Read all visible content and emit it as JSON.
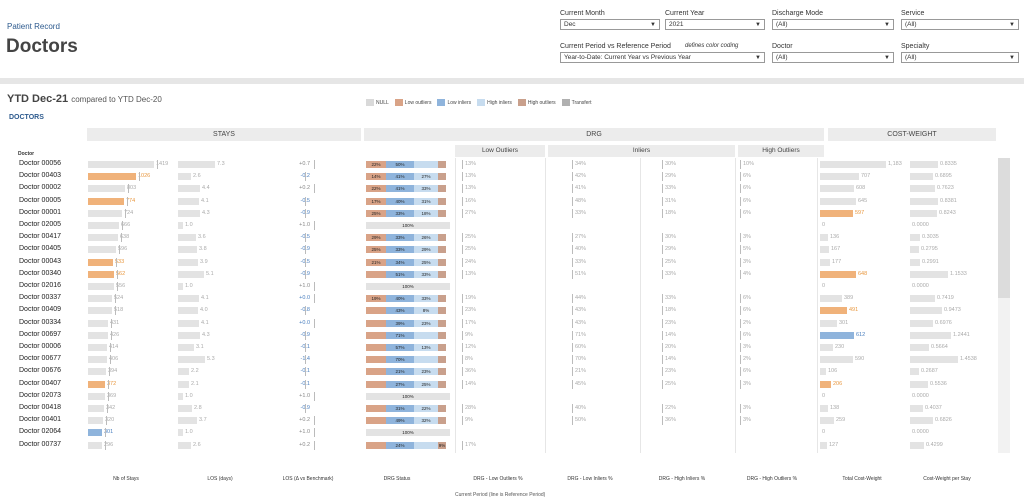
{
  "header": {
    "crumb": "Patient Record",
    "title": "Doctors"
  },
  "filters": [
    {
      "label": "Current Month",
      "value": "Dec"
    },
    {
      "label": "Current Year",
      "value": "2021"
    },
    {
      "label": "Discharge Mode",
      "value": "(All)"
    },
    {
      "label": "Service",
      "value": "(All)"
    },
    {
      "label": "Current Period vs Reference Period",
      "value": "Year-to-Date: Current Year vs Previous Year"
    },
    {
      "label": "Doctor",
      "value": "(All)"
    },
    {
      "label": "Specialty",
      "value": "(All)"
    }
  ],
  "note": "defines color coding",
  "ytd": {
    "main": "YTD Dec-21",
    "sub": "compared to YTD Dec-20"
  },
  "legend": [
    {
      "label": "NULL",
      "color": "#d9d9d9"
    },
    {
      "label": "Low outliers",
      "color": "#d9a387"
    },
    {
      "label": "Low inliers",
      "color": "#8fb4dc"
    },
    {
      "label": "High inliers",
      "color": "#c7dcef"
    },
    {
      "label": "High outliers",
      "color": "#c9a08c"
    },
    {
      "label": "Transfert",
      "color": "#b0b0b0"
    }
  ],
  "section_label": "DOCTORS",
  "groups": {
    "stays": "STAYS",
    "drg": "DRG",
    "cw": "COST-WEIGHT"
  },
  "subgroups": {
    "low": "Low Outliers",
    "inl": "Inliers",
    "high": "High Outliers"
  },
  "doctor_col": "Doctor",
  "rows": [
    {
      "name": "Doctor 00056",
      "stays": 1419,
      "sh": "g",
      "los": "7.3",
      "d": "+0.7",
      "db": "",
      "drg": [
        "22%",
        "50%",
        ""
      ],
      "dl": "13%",
      "di": "34%",
      "dh": "30%",
      "do": "10%",
      "cw": "1,183",
      "ch": "g",
      "cps": "0.8335"
    },
    {
      "name": "Doctor 00403",
      "stays": 1026,
      "sh": "o",
      "los": "2.6",
      "d": "-0.2",
      "db": "b",
      "drg": [
        "14%",
        "41%",
        "27%"
      ],
      "dl": "13%",
      "di": "42%",
      "dh": "29%",
      "do": "6%",
      "cw": "707",
      "ch": "g",
      "cps": "0.6895"
    },
    {
      "name": "Doctor 00002",
      "stays": 803,
      "sh": "g",
      "los": "4.4",
      "d": "+0.2",
      "db": "",
      "drg": [
        "22%",
        "41%",
        "33%"
      ],
      "dl": "13%",
      "di": "41%",
      "dh": "33%",
      "do": "6%",
      "cw": "608",
      "ch": "g",
      "cps": "0.7623"
    },
    {
      "name": "Doctor 00005",
      "stays": 774,
      "sh": "o",
      "los": "4.1",
      "d": "-0.5",
      "db": "b",
      "drg": [
        "17%",
        "40%",
        "31%"
      ],
      "dl": "16%",
      "di": "48%",
      "dh": "31%",
      "do": "6%",
      "cw": "645",
      "ch": "g",
      "cps": "0.8381"
    },
    {
      "name": "Doctor 00001",
      "stays": 724,
      "sh": "g",
      "los": "4.3",
      "d": "-0.9",
      "db": "b",
      "drg": [
        "25%",
        "33%",
        "18%"
      ],
      "dl": "27%",
      "di": "33%",
      "dh": "18%",
      "do": "6%",
      "cw": "597",
      "ch": "o",
      "cps": "0.8243"
    },
    {
      "name": "Doctor 02005",
      "stays": 666,
      "sh": "g",
      "los": "1.0",
      "d": "+1.0",
      "db": "",
      "drg": [
        "100%",
        "",
        ""
      ],
      "dl": "",
      "di": "",
      "dh": "",
      "do": "",
      "cw": "0",
      "ch": "g",
      "cps": "0.0000"
    },
    {
      "name": "Doctor 00417",
      "stays": 638,
      "sh": "g",
      "los": "3.6",
      "d": "-0.5",
      "db": "b",
      "drg": [
        "29%",
        "33%",
        "26%"
      ],
      "dl": "25%",
      "di": "27%",
      "dh": "30%",
      "do": "3%",
      "cw": "136",
      "ch": "g",
      "cps": "0.3035"
    },
    {
      "name": "Doctor 00405",
      "stays": 596,
      "sh": "g",
      "los": "3.8",
      "d": "-0.9",
      "db": "b",
      "drg": [
        "25%",
        "33%",
        "29%"
      ],
      "dl": "25%",
      "di": "40%",
      "dh": "29%",
      "do": "5%",
      "cw": "167",
      "ch": "g",
      "cps": "0.2795"
    },
    {
      "name": "Doctor 00043",
      "stays": 533,
      "sh": "o",
      "los": "3.9",
      "d": "-0.5",
      "db": "b",
      "drg": [
        "21%",
        "34%",
        "25%"
      ],
      "dl": "24%",
      "di": "33%",
      "dh": "25%",
      "do": "3%",
      "cw": "177",
      "ch": "g",
      "cps": "0.2991"
    },
    {
      "name": "Doctor 00340",
      "stays": 562,
      "sh": "o",
      "los": "5.1",
      "d": "-0.9",
      "db": "b",
      "drg": [
        "",
        "51%",
        "33%"
      ],
      "dl": "13%",
      "di": "51%",
      "dh": "33%",
      "do": "4%",
      "cw": "648",
      "ch": "o",
      "cps": "1.1533"
    },
    {
      "name": "Doctor 02016",
      "stays": 556,
      "sh": "g",
      "los": "1.0",
      "d": "+1.0",
      "db": "",
      "drg": [
        "100%",
        "",
        ""
      ],
      "dl": "",
      "di": "",
      "dh": "",
      "do": "",
      "cw": "0",
      "ch": "g",
      "cps": "0.0000"
    },
    {
      "name": "Doctor 00337",
      "stays": 524,
      "sh": "g",
      "los": "4.1",
      "d": "+0.0",
      "db": "b",
      "drg": [
        "19%",
        "40%",
        "33%"
      ],
      "dl": "19%",
      "di": "44%",
      "dh": "33%",
      "do": "6%",
      "cw": "389",
      "ch": "g",
      "cps": "0.7419"
    },
    {
      "name": "Doctor 00409",
      "stays": 518,
      "sh": "g",
      "los": "4.0",
      "d": "-0.8",
      "db": "b",
      "drg": [
        "",
        "43%",
        "8%"
      ],
      "dl": "23%",
      "di": "43%",
      "dh": "18%",
      "do": "6%",
      "cw": "491",
      "ch": "o",
      "cps": "0.9473"
    },
    {
      "name": "Doctor 00334",
      "stays": 431,
      "sh": "g",
      "los": "4.1",
      "d": "+0.0",
      "db": "b",
      "drg": [
        "",
        "39%",
        "23%"
      ],
      "dl": "17%",
      "di": "43%",
      "dh": "23%",
      "do": "2%",
      "cw": "301",
      "ch": "g",
      "cps": "0.6976"
    },
    {
      "name": "Doctor 00697",
      "stays": 426,
      "sh": "g",
      "los": "4.3",
      "d": "-0.9",
      "db": "b",
      "drg": [
        "",
        "71%",
        ""
      ],
      "dl": "9%",
      "di": "71%",
      "dh": "14%",
      "do": "6%",
      "cw": "612",
      "ch": "b",
      "cps": "1.2441"
    },
    {
      "name": "Doctor 00006",
      "stays": 414,
      "sh": "g",
      "los": "3.1",
      "d": "-0.1",
      "db": "b",
      "drg": [
        "",
        "57%",
        "13%"
      ],
      "dl": "12%",
      "di": "60%",
      "dh": "20%",
      "do": "3%",
      "cw": "230",
      "ch": "g",
      "cps": "0.5664"
    },
    {
      "name": "Doctor 00677",
      "stays": 406,
      "sh": "g",
      "los": "5.3",
      "d": "-1.4",
      "db": "b",
      "drg": [
        "",
        "70%",
        ""
      ],
      "dl": "8%",
      "di": "70%",
      "dh": "14%",
      "do": "2%",
      "cw": "590",
      "ch": "g",
      "cps": "1.4538"
    },
    {
      "name": "Doctor 00676",
      "stays": 394,
      "sh": "g",
      "los": "2.2",
      "d": "-0.1",
      "db": "b",
      "drg": [
        "",
        "21%",
        "23%"
      ],
      "dl": "36%",
      "di": "21%",
      "dh": "23%",
      "do": "6%",
      "cw": "106",
      "ch": "g",
      "cps": "0.2687"
    },
    {
      "name": "Doctor 00407",
      "stays": 372,
      "sh": "o",
      "los": "2.1",
      "d": "-0.1",
      "db": "b",
      "drg": [
        "",
        "27%",
        "25%"
      ],
      "dl": "14%",
      "di": "45%",
      "dh": "25%",
      "do": "3%",
      "cw": "206",
      "ch": "o",
      "cps": "0.5536"
    },
    {
      "name": "Doctor 02073",
      "stays": 369,
      "sh": "g",
      "los": "1.0",
      "d": "+1.0",
      "db": "",
      "drg": [
        "100%",
        "",
        ""
      ],
      "dl": "",
      "di": "",
      "dh": "",
      "do": "",
      "cw": "0",
      "ch": "g",
      "cps": "0.0000"
    },
    {
      "name": "Doctor 00418",
      "stays": 342,
      "sh": "g",
      "los": "2.8",
      "d": "-0.9",
      "db": "b",
      "drg": [
        "",
        "31%",
        "22%"
      ],
      "dl": "28%",
      "di": "40%",
      "dh": "22%",
      "do": "3%",
      "cw": "138",
      "ch": "g",
      "cps": "0.4037"
    },
    {
      "name": "Doctor 00401",
      "stays": 320,
      "sh": "g",
      "los": "3.7",
      "d": "+0.2",
      "db": "",
      "drg": [
        "",
        "49%",
        "32%"
      ],
      "dl": "9%",
      "di": "50%",
      "dh": "36%",
      "do": "3%",
      "cw": "259",
      "ch": "g",
      "cps": "0.6826"
    },
    {
      "name": "Doctor 02064",
      "stays": 301,
      "sh": "b",
      "los": "1.0",
      "d": "+1.0",
      "db": "",
      "drg": [
        "100%",
        "",
        ""
      ],
      "dl": "",
      "di": "",
      "dh": "",
      "do": "",
      "cw": "0",
      "ch": "g",
      "cps": "0.0000"
    },
    {
      "name": "Doctor 00737",
      "stays": 296,
      "sh": "g",
      "los": "2.6",
      "d": "+0.2",
      "db": "",
      "drg": [
        "",
        "24%",
        "",
        "9%"
      ],
      "dl": "17%",
      "di": "",
      "dh": "",
      "do": "",
      "cw": "127",
      "ch": "g",
      "cps": "0.4299"
    }
  ],
  "axis_labels": [
    "Nb of Stays",
    "LOS (days)",
    "LOS (Δ vs Benchmark)",
    "DRG Status",
    "DRG - Low Outliers %",
    "DRG - Low Inliers %",
    "DRG - High Inliers %",
    "DRG - High Outliers %",
    "Total Cost-Weight",
    "Cost-Weight per Stay"
  ],
  "footer": "Current Period  (line is Reference Period)"
}
